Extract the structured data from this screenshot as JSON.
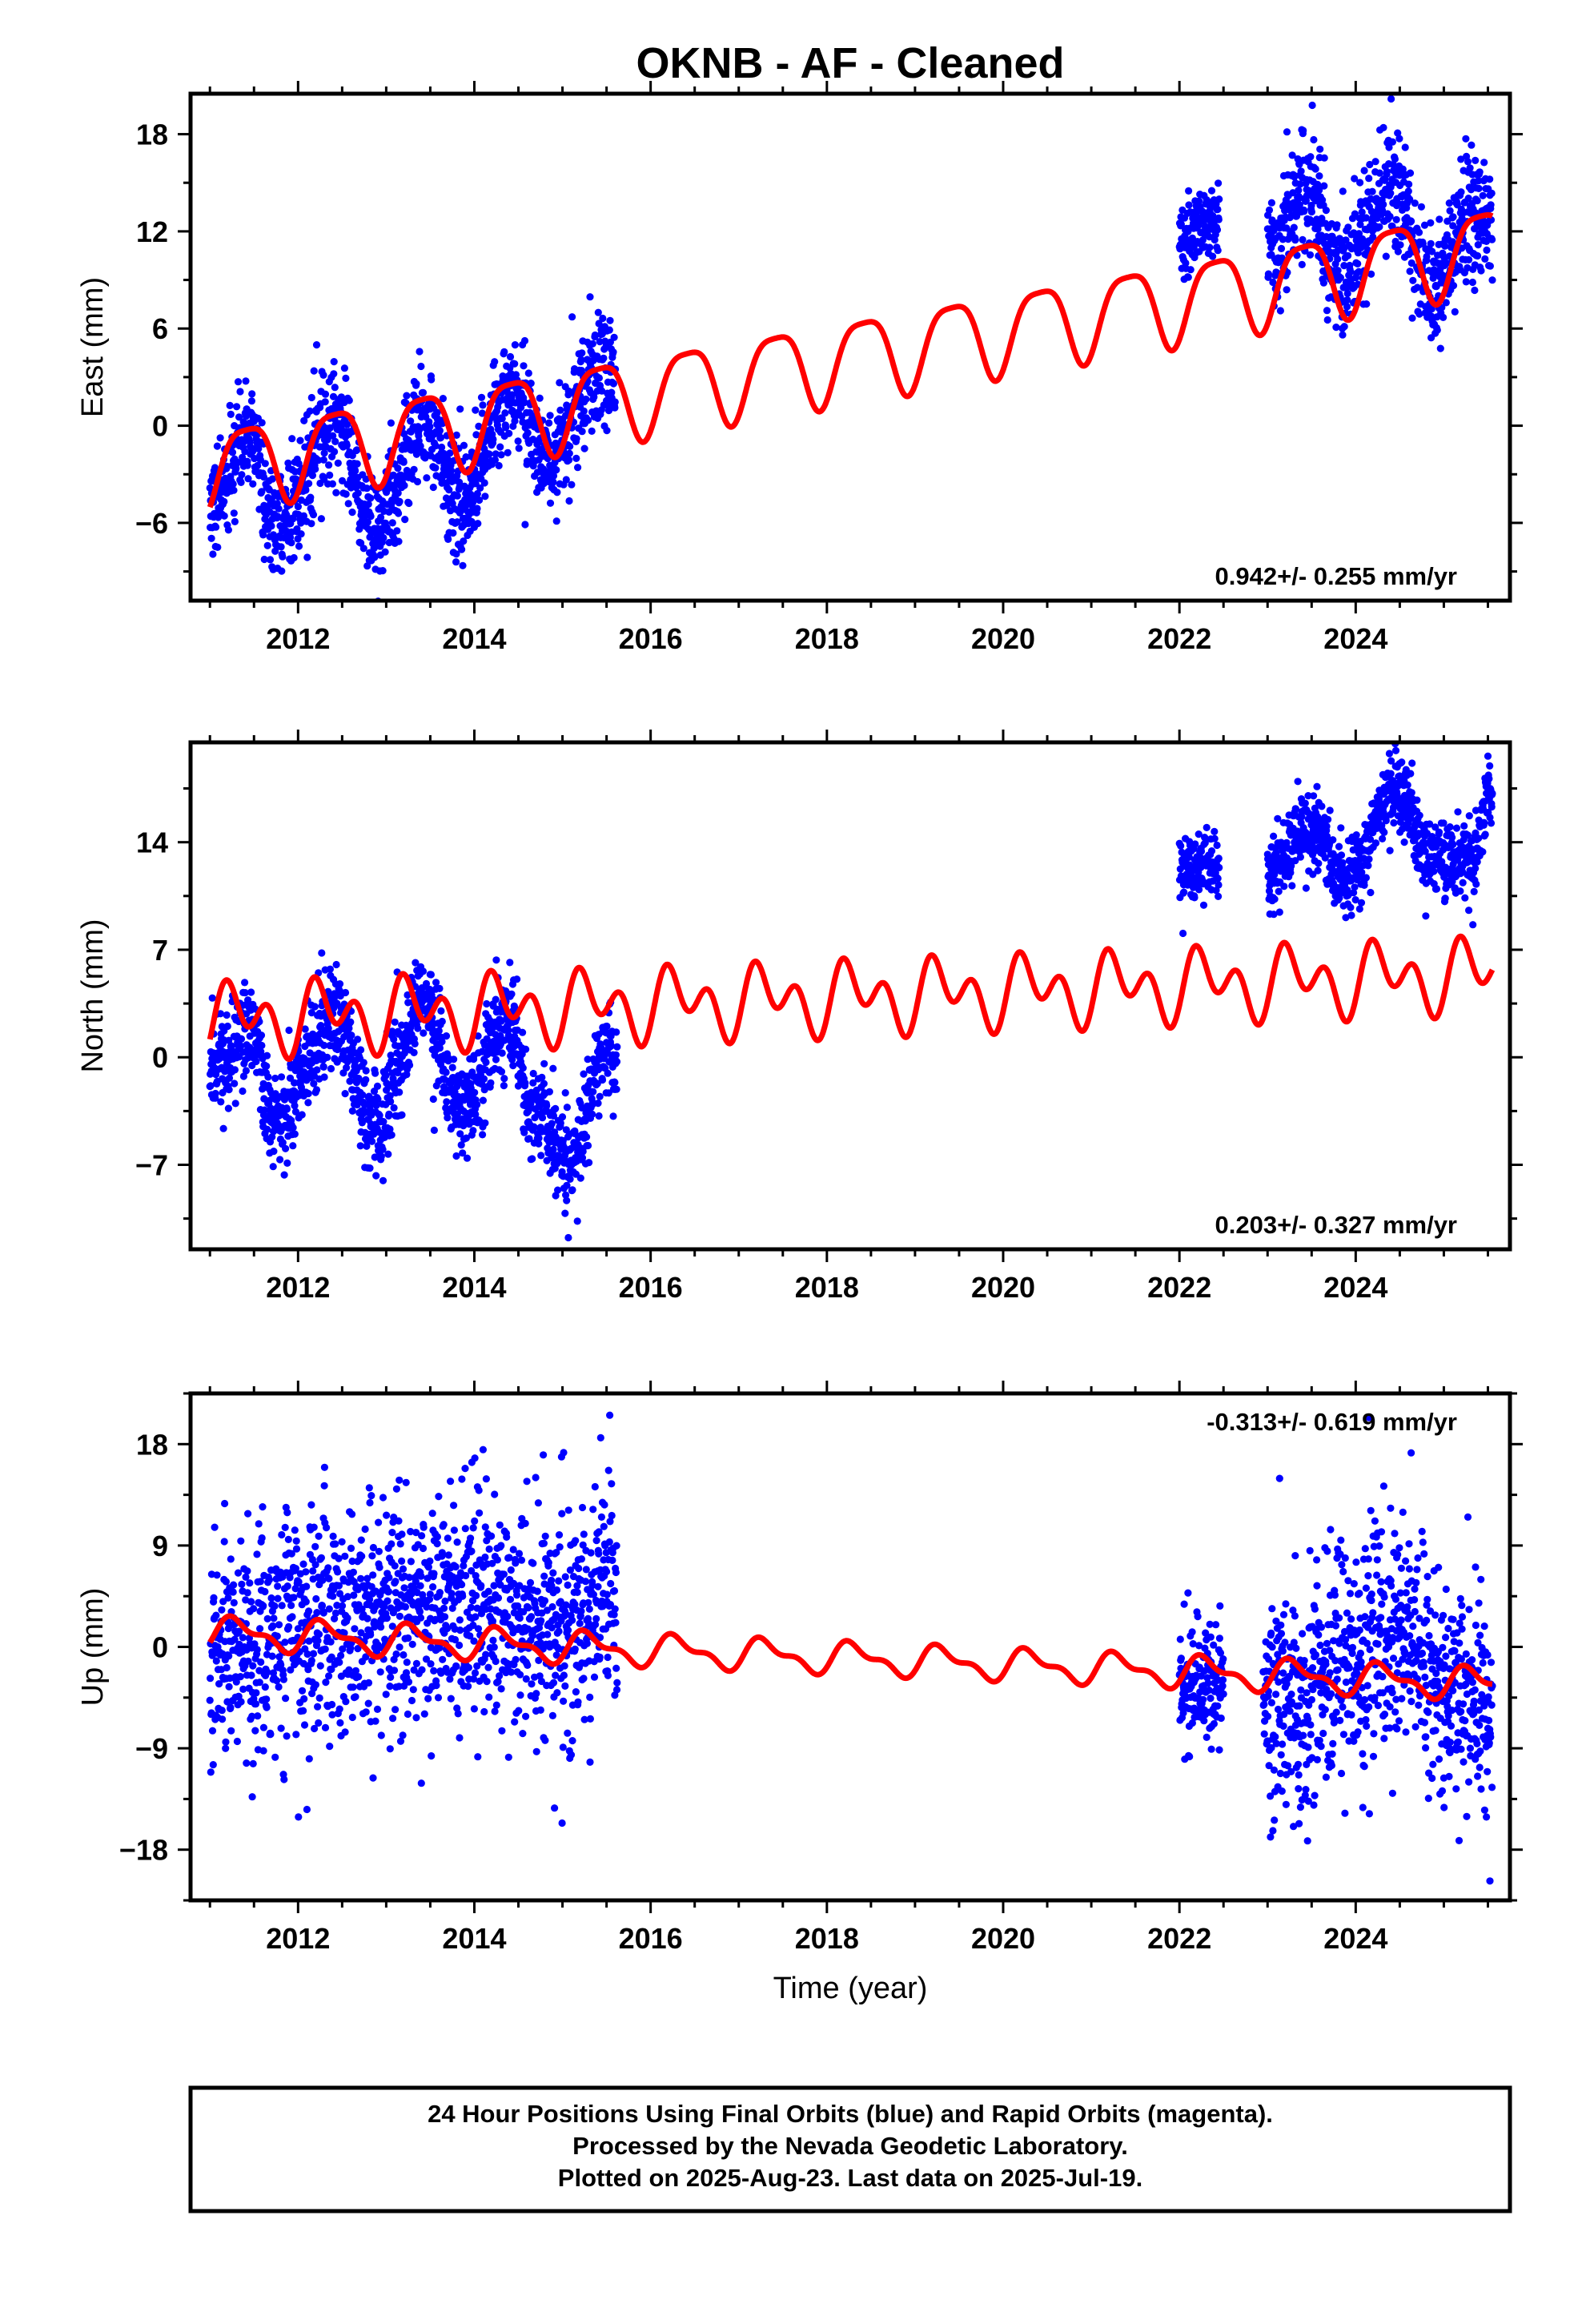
{
  "title": "OKNB  - AF - Cleaned",
  "footer": {
    "line1": "24 Hour Positions Using Final Orbits (blue) and Rapid Orbits (magenta).",
    "line2": "Processed by the Nevada Geodetic Laboratory.",
    "line3": "Plotted on 2025-Aug-23. Last data on 2025-Jul-19."
  },
  "colors": {
    "observations": "#0000ff",
    "model": "#ff0000",
    "frame": "#000000"
  },
  "chart_data": [
    {
      "type": "scatter",
      "ylabel": "East (mm)",
      "xlabel": "",
      "xlim": [
        2010.78,
        2025.75
      ],
      "ylim": [
        -10.8,
        20.5
      ],
      "xticks": [
        2012,
        2014,
        2016,
        2018,
        2020,
        2022,
        2024
      ],
      "xtick_labels": [
        "2012",
        "2014",
        "2016",
        "2018",
        "2020",
        "2022",
        "2024"
      ],
      "yticks": [
        -6,
        0,
        6,
        12,
        18
      ],
      "ytick_labels": [
        "−6",
        "0",
        "6",
        "12",
        "18"
      ],
      "rate": "0.942+/- 0.255 mm/yr",
      "rate_position": "bottom-right",
      "series": [
        {
          "style": "points",
          "segments": [
            {
              "start": 2011.0,
              "end": 2015.6,
              "anchors": [
                [
                  2011.0,
                  -4.8
                ],
                [
                  2011.45,
                  -0.6
                ],
                [
                  2011.75,
                  -6.2
                ],
                [
                  2012.45,
                  0.3
                ],
                [
                  2012.85,
                  -6.8
                ],
                [
                  2013.45,
                  0.6
                ],
                [
                  2013.85,
                  -4.5
                ],
                [
                  2014.45,
                  2.0
                ],
                [
                  2014.85,
                  -2.0
                ],
                [
                  2015.45,
                  3.5
                ],
                [
                  2015.6,
                  3.0
                ]
              ],
              "noise": 1.7
            },
            {
              "start": 2022.0,
              "end": 2022.45,
              "anchors": [
                [
                  2022.0,
                  11.5
                ],
                [
                  2022.45,
                  12.5
                ]
              ],
              "noise": 1.2
            },
            {
              "start": 2023.0,
              "end": 2025.55,
              "anchors": [
                [
                  2023.0,
                  10.5
                ],
                [
                  2023.45,
                  14.0
                ],
                [
                  2023.85,
                  9.5
                ],
                [
                  2024.4,
                  15.0
                ],
                [
                  2024.85,
                  8.5
                ],
                [
                  2025.3,
                  13.0
                ],
                [
                  2025.55,
                  12.0
                ]
              ],
              "noise": 1.8
            }
          ]
        },
        {
          "style": "line",
          "x0": 2011.0,
          "x1": 2025.55,
          "intercept": -2.55,
          "slope": 0.942,
          "slope_at": 2011.0,
          "annual_amplitude": 2.5,
          "annual_phase": 2011.17,
          "semiannual_amplitude": 0.6,
          "semiannual_phase": 2011.04
        }
      ]
    },
    {
      "type": "scatter",
      "ylabel": "North (mm)",
      "xlabel": "",
      "xlim": [
        2010.78,
        2025.75
      ],
      "ylim": [
        -12.5,
        20.5
      ],
      "xticks": [
        2012,
        2014,
        2016,
        2018,
        2020,
        2022,
        2024
      ],
      "xtick_labels": [
        "2012",
        "2014",
        "2016",
        "2018",
        "2020",
        "2022",
        "2024"
      ],
      "yticks": [
        -7,
        0,
        7,
        14
      ],
      "ytick_labels": [
        "−7",
        "0",
        "7",
        "14"
      ],
      "rate": "0.203+/- 0.327 mm/yr",
      "rate_position": "bottom-right",
      "series": [
        {
          "style": "points",
          "segments": [
            {
              "start": 2011.0,
              "end": 2015.62,
              "anchors": [
                [
                  2011.0,
                  -1.0
                ],
                [
                  2011.45,
                  2.0
                ],
                [
                  2011.75,
                  -4.0
                ],
                [
                  2012.45,
                  2.5
                ],
                [
                  2012.85,
                  -4.5
                ],
                [
                  2013.45,
                  3.5
                ],
                [
                  2013.85,
                  -3.5
                ],
                [
                  2014.4,
                  2.5
                ],
                [
                  2014.65,
                  -3.5
                ],
                [
                  2015.1,
                  -7.0
                ],
                [
                  2015.5,
                  0.5
                ],
                [
                  2015.62,
                  -1.0
                ]
              ],
              "noise": 1.6
            },
            {
              "start": 2022.0,
              "end": 2022.45,
              "anchors": [
                [
                  2022.0,
                  12.0
                ],
                [
                  2022.45,
                  12.5
                ]
              ],
              "noise": 1.0
            },
            {
              "start": 2023.0,
              "end": 2025.55,
              "anchors": [
                [
                  2023.0,
                  12.0
                ],
                [
                  2023.5,
                  15.0
                ],
                [
                  2023.85,
                  11.5
                ],
                [
                  2024.45,
                  17.5
                ],
                [
                  2024.85,
                  13.0
                ],
                [
                  2025.3,
                  13.0
                ],
                [
                  2025.55,
                  18.0
                ]
              ],
              "noise": 1.3
            }
          ]
        },
        {
          "style": "line",
          "x0": 2011.0,
          "x1": 2025.55,
          "intercept": 2.45,
          "slope": 0.203,
          "slope_at": 2011.0,
          "annual_amplitude": 1.4,
          "annual_phase": 2011.06,
          "semiannual_amplitude": 1.6,
          "semiannual_phase": 2011.04
        }
      ]
    },
    {
      "type": "scatter",
      "ylabel": "Up (mm)",
      "xlabel": "Time (year)",
      "xlim": [
        2010.78,
        2025.75
      ],
      "ylim": [
        -22.5,
        22.5
      ],
      "xticks": [
        2012,
        2014,
        2016,
        2018,
        2020,
        2022,
        2024
      ],
      "xtick_labels": [
        "2012",
        "2014",
        "2016",
        "2018",
        "2020",
        "2022",
        "2024"
      ],
      "yticks": [
        -18,
        -9,
        0,
        9,
        18
      ],
      "ytick_labels": [
        "−18",
        "−9",
        "0",
        "9",
        "18"
      ],
      "rate": "-0.313+/- 0.619 mm/yr",
      "rate_position": "top-right",
      "series": [
        {
          "style": "points",
          "segments": [
            {
              "start": 2011.0,
              "end": 2015.62,
              "anchors": [
                [
                  2011.0,
                  0.0
                ],
                [
                  2012.0,
                  1.5
                ],
                [
                  2013.0,
                  3.5
                ],
                [
                  2014.0,
                  3.0
                ],
                [
                  2015.0,
                  2.5
                ],
                [
                  2015.62,
                  4.5
                ]
              ],
              "noise": 5.0
            },
            {
              "start": 2022.0,
              "end": 2022.5,
              "anchors": [
                [
                  2022.0,
                  -4.0
                ],
                [
                  2022.5,
                  -3.0
                ]
              ],
              "noise": 2.5
            },
            {
              "start": 2022.95,
              "end": 2025.55,
              "anchors": [
                [
                  2022.95,
                  -6.0
                ],
                [
                  2023.5,
                  -3.5
                ],
                [
                  2024.0,
                  -1.5
                ],
                [
                  2024.45,
                  1.5
                ],
                [
                  2025.0,
                  -3.5
                ],
                [
                  2025.55,
                  -6.0
                ]
              ],
              "noise": 5.0
            }
          ]
        },
        {
          "style": "line",
          "x0": 2011.0,
          "x1": 2025.55,
          "intercept": 1.25,
          "slope": -0.313,
          "slope_at": 2011.0,
          "annual_amplitude": 1.2,
          "annual_phase": 2011.06,
          "semiannual_amplitude": 0.6,
          "semiannual_phase": 2011.06
        }
      ]
    }
  ]
}
